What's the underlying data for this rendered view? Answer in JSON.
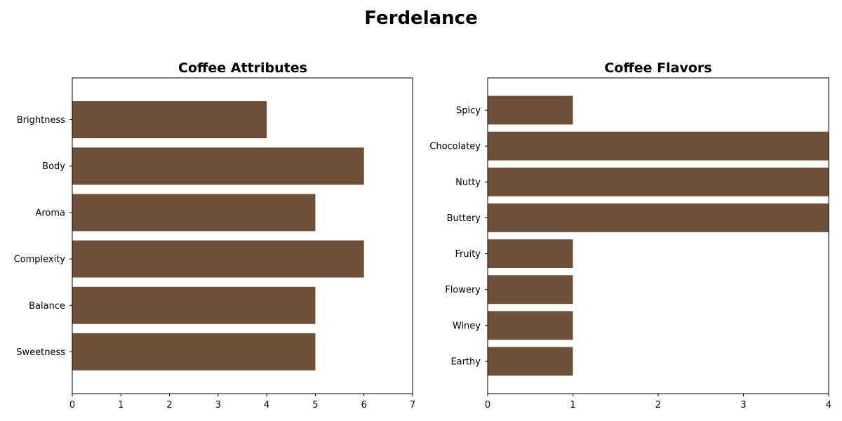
{
  "figure": {
    "title": "Ferdelance"
  },
  "colors": {
    "bar": "#6f4f37",
    "axis": "#000000",
    "background": "#ffffff"
  },
  "chart_data": [
    {
      "type": "bar",
      "orientation": "horizontal",
      "title": "Coffee Attributes",
      "xlabel": "",
      "ylabel": "",
      "categories": [
        "Brightness",
        "Body",
        "Aroma",
        "Complexity",
        "Balance",
        "Sweetness"
      ],
      "values": [
        4,
        6,
        5,
        6,
        5,
        5
      ],
      "xlim": [
        0,
        7
      ],
      "xticks": [
        0,
        1,
        2,
        3,
        4,
        5,
        6,
        7
      ],
      "grid": false,
      "legend": "none"
    },
    {
      "type": "bar",
      "orientation": "horizontal",
      "title": "Coffee Flavors",
      "xlabel": "",
      "ylabel": "",
      "categories": [
        "Spicy",
        "Chocolatey",
        "Nutty",
        "Buttery",
        "Fruity",
        "Flowery",
        "Winey",
        "Earthy"
      ],
      "values": [
        1,
        4,
        4,
        4,
        1,
        1,
        1,
        1
      ],
      "xlim": [
        0,
        4
      ],
      "xticks": [
        0,
        1,
        2,
        3,
        4
      ],
      "grid": false,
      "legend": "none"
    }
  ]
}
